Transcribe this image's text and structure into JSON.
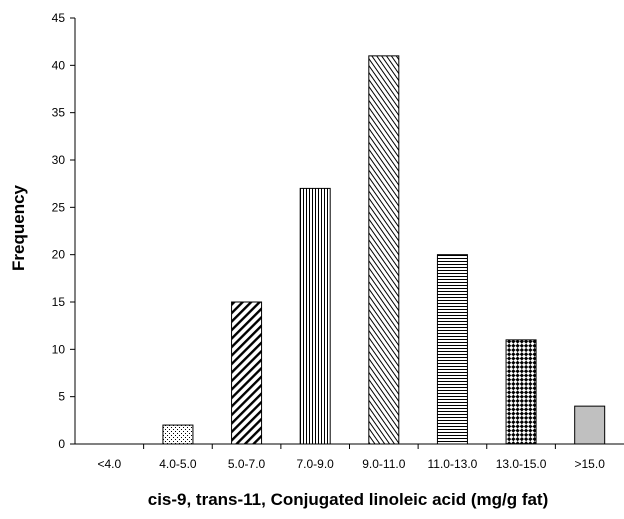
{
  "chart_data": {
    "type": "bar",
    "title": "",
    "xlabel": "cis-9, trans-11,  Conjugated linoleic acid  (mg/g fat)",
    "ylabel": "Frequency",
    "ylim": [
      0,
      45
    ],
    "yticks": [
      0,
      5,
      10,
      15,
      20,
      25,
      30,
      35,
      40,
      45
    ],
    "categories": [
      "<4.0",
      "4.0-5.0",
      "5.0-7.0",
      "7.0-9.0",
      "9.0-11.0",
      "11.0-13.0",
      "13.0-15.0",
      ">15.0"
    ],
    "values": [
      0,
      2,
      15,
      27,
      41,
      20,
      11,
      4
    ],
    "grid": false,
    "legend": "none",
    "bar_fills": [
      "none",
      "dots",
      "diagonal-right",
      "vertical",
      "diagonal-left",
      "horizontal",
      "diamond-check",
      "gray"
    ],
    "colors": {
      "stroke": "#000000",
      "solid_fill": "#c0c0c0",
      "background": "#ffffff"
    }
  }
}
